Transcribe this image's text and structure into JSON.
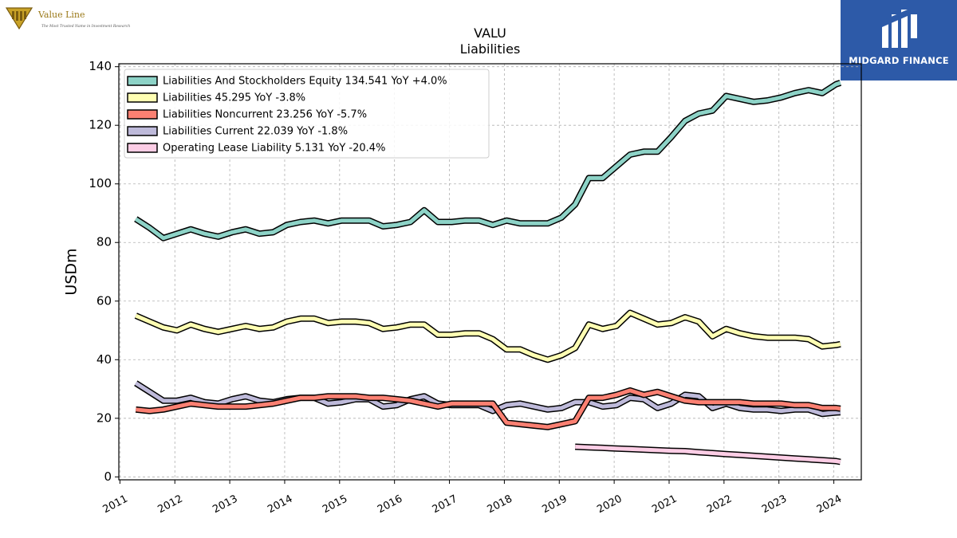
{
  "brand": {
    "valueline_name": "Value Line",
    "valueline_tagline": "The Most Trusted Name in Investment Research",
    "midgard_name": "MIDGARD FINANCE"
  },
  "chart_data": {
    "type": "line",
    "title": "VALU",
    "subtitle": "Liabilities",
    "xlabel": "",
    "ylabel": "USDm",
    "xlim": [
      2010.98,
      2024.5
    ],
    "ylim": [
      -1,
      141
    ],
    "x_ticks": [
      2011,
      2012,
      2013,
      2014,
      2015,
      2016,
      2017,
      2018,
      2019,
      2020,
      2021,
      2022,
      2023,
      2024
    ],
    "y_ticks": [
      0,
      20,
      40,
      60,
      80,
      100,
      120,
      140
    ],
    "grid": true,
    "legend_position": "top-left",
    "series": [
      {
        "name": "Liabilities And Stockholders Equity",
        "legend": "Liabilities And Stockholders Equity  134.541 YoY +4.0%",
        "color": "#8dd3c7",
        "x": [
          2011.29,
          2011.54,
          2011.79,
          2012.04,
          2012.29,
          2012.54,
          2012.79,
          2013.04,
          2013.29,
          2013.54,
          2013.79,
          2014.04,
          2014.29,
          2014.54,
          2014.79,
          2015.04,
          2015.29,
          2015.54,
          2015.79,
          2016.04,
          2016.29,
          2016.54,
          2016.79,
          2017.04,
          2017.29,
          2017.54,
          2017.79,
          2018.04,
          2018.29,
          2018.54,
          2018.79,
          2019.04,
          2019.29,
          2019.54,
          2019.79,
          2020.04,
          2020.29,
          2020.54,
          2020.79,
          2021.04,
          2021.29,
          2021.54,
          2021.79,
          2022.04,
          2022.29,
          2022.54,
          2022.79,
          2023.04,
          2023.29,
          2023.54,
          2023.79,
          2024.04,
          2024.12
        ],
        "values": [
          88,
          85,
          81.5,
          83,
          84.5,
          83,
          82,
          83.5,
          84.5,
          83,
          83.5,
          86,
          87,
          87.5,
          86.5,
          87.5,
          87.5,
          87.5,
          85.5,
          86,
          87,
          91,
          87,
          87,
          87.5,
          87.5,
          86,
          87.5,
          86.5,
          86.5,
          86.5,
          88.5,
          93,
          102,
          102,
          106,
          110,
          111,
          111,
          116,
          121.5,
          124,
          125,
          130,
          129,
          128,
          128.5,
          129.5,
          131,
          132,
          131,
          134,
          134.5
        ]
      },
      {
        "name": "Liabilities",
        "legend": "Liabilities  45.295 YoY -3.8%",
        "color": "#ffffb3",
        "x": [
          2011.29,
          2011.54,
          2011.79,
          2012.04,
          2012.29,
          2012.54,
          2012.79,
          2013.04,
          2013.29,
          2013.54,
          2013.79,
          2014.04,
          2014.29,
          2014.54,
          2014.79,
          2015.04,
          2015.29,
          2015.54,
          2015.79,
          2016.04,
          2016.29,
          2016.54,
          2016.79,
          2017.04,
          2017.29,
          2017.54,
          2017.79,
          2018.04,
          2018.29,
          2018.54,
          2018.79,
          2019.04,
          2019.29,
          2019.54,
          2019.79,
          2020.04,
          2020.29,
          2020.54,
          2020.79,
          2021.04,
          2021.29,
          2021.54,
          2021.79,
          2022.04,
          2022.29,
          2022.54,
          2022.79,
          2023.04,
          2023.29,
          2023.54,
          2023.79,
          2024.04,
          2024.12
        ],
        "values": [
          55,
          53,
          51,
          50,
          52,
          50.5,
          49.5,
          50.5,
          51.5,
          50.5,
          51,
          53,
          54,
          54,
          52.5,
          53,
          53,
          52.5,
          50.5,
          51,
          52,
          52,
          48.5,
          48.5,
          49,
          49,
          47,
          43.5,
          43.5,
          41.5,
          40,
          41.5,
          44,
          52,
          50.5,
          51.5,
          56,
          54,
          52,
          52.5,
          54.5,
          53,
          48,
          50.5,
          49,
          48,
          47.5,
          47.5,
          47.5,
          47,
          44.5,
          45,
          45.3
        ]
      },
      {
        "name": "Liabilities Noncurrent",
        "legend": "Liabilities Noncurrent  23.256 YoY -5.7%",
        "color": "#fb8072",
        "x": [
          2011.29,
          2011.54,
          2011.79,
          2012.04,
          2012.29,
          2012.54,
          2012.79,
          2013.04,
          2013.29,
          2013.54,
          2013.79,
          2014.04,
          2014.29,
          2014.54,
          2014.79,
          2015.04,
          2015.29,
          2015.54,
          2015.79,
          2016.04,
          2016.29,
          2016.54,
          2016.79,
          2017.04,
          2017.29,
          2017.54,
          2017.79,
          2018.04,
          2018.29,
          2018.54,
          2018.79,
          2019.04,
          2019.29,
          2019.54,
          2019.79,
          2020.04,
          2020.29,
          2020.54,
          2020.79,
          2021.04,
          2021.29,
          2021.54,
          2021.79,
          2022.04,
          2022.29,
          2022.54,
          2022.79,
          2023.04,
          2023.29,
          2023.54,
          2023.79,
          2024.04,
          2024.12
        ],
        "values": [
          23,
          22.5,
          23,
          24,
          25,
          24.5,
          24,
          24,
          24,
          24.5,
          25,
          26,
          27,
          27,
          27.5,
          27.5,
          27.5,
          27,
          27,
          26.5,
          26,
          25,
          24,
          25,
          25,
          25,
          25,
          18.5,
          18,
          17.5,
          17,
          18,
          19,
          27,
          27,
          28,
          29.5,
          28,
          29,
          27.5,
          26,
          25.5,
          25.5,
          25.5,
          25.5,
          25,
          25,
          25,
          24.5,
          24.5,
          23.5,
          23.5,
          23.3
        ]
      },
      {
        "name": "Liabilities Current",
        "legend": "Liabilities Current  22.039 YoY -1.8%",
        "color": "#bebada",
        "x": [
          2011.29,
          2011.54,
          2011.79,
          2012.04,
          2012.29,
          2012.54,
          2012.79,
          2013.04,
          2013.29,
          2013.54,
          2013.79,
          2014.04,
          2014.29,
          2014.54,
          2014.79,
          2015.04,
          2015.29,
          2015.54,
          2015.79,
          2016.04,
          2016.29,
          2016.54,
          2016.79,
          2017.04,
          2017.29,
          2017.54,
          2017.79,
          2018.04,
          2018.29,
          2018.54,
          2018.79,
          2019.04,
          2019.29,
          2019.54,
          2019.79,
          2020.04,
          2020.29,
          2020.54,
          2020.79,
          2021.04,
          2021.29,
          2021.54,
          2021.79,
          2022.04,
          2022.29,
          2022.54,
          2022.79,
          2023.04,
          2023.29,
          2023.54,
          2023.79,
          2024.04,
          2024.12
        ],
        "values": [
          32,
          29,
          26,
          26,
          27,
          25.5,
          25,
          26.5,
          27.5,
          26,
          25.5,
          26.5,
          27,
          27,
          25,
          25.5,
          26.5,
          26.5,
          24,
          24.5,
          26.5,
          27.5,
          25,
          24.5,
          24.5,
          24.5,
          22.5,
          24.5,
          25,
          24,
          23,
          23.5,
          25.5,
          25.5,
          24,
          24.5,
          27,
          26.5,
          23.5,
          25,
          28,
          27.5,
          23.5,
          25,
          23.5,
          23,
          23,
          22.5,
          23,
          23,
          21.5,
          22,
          22.04
        ]
      },
      {
        "name": "Operating Lease Liability",
        "legend": "Operating Lease Liability  5.131 YoY -20.4%",
        "color": "#fccde5",
        "x": [
          2019.29,
          2019.54,
          2019.79,
          2020.04,
          2020.29,
          2020.54,
          2020.79,
          2021.04,
          2021.29,
          2021.54,
          2021.79,
          2022.04,
          2022.29,
          2022.54,
          2022.79,
          2023.04,
          2023.29,
          2023.54,
          2023.79,
          2024.04,
          2024.12
        ],
        "values": [
          10.3,
          10.1,
          9.9,
          9.7,
          9.5,
          9.3,
          9.1,
          8.9,
          8.8,
          8.4,
          8.1,
          7.8,
          7.5,
          7.2,
          6.9,
          6.6,
          6.3,
          6.0,
          5.7,
          5.4,
          5.13
        ]
      }
    ]
  }
}
